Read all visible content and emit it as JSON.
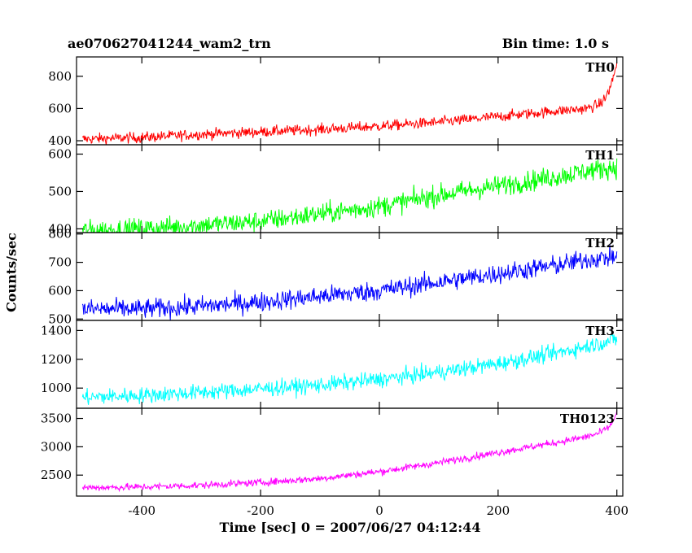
{
  "header": {
    "title": "ae070627041244_wam2_trn",
    "bin_time": "Bin time: 1.0 s"
  },
  "axes": {
    "xlabel": "Time [sec] 0 = 2007/06/27 04:12:44",
    "ylabel": "Counts/sec"
  },
  "colors": {
    "TH0": "#ff0000",
    "TH1": "#00ff00",
    "TH2": "#0000ff",
    "TH3": "#00ffff",
    "TH0123": "#ff00ff"
  },
  "chart_data": {
    "type": "line",
    "xlim": [
      -510,
      410
    ],
    "x_ticks": [
      -400,
      -200,
      0,
      200,
      400
    ],
    "x_tick_labels": [
      "-400",
      "-200",
      "0",
      "200",
      "400"
    ],
    "grid": false,
    "panels": [
      {
        "name": "TH0",
        "ylim": [
          375,
          920
        ],
        "y_ticks": [
          400,
          600,
          800
        ],
        "y_tick_labels": [
          "400",
          "600",
          "800"
        ],
        "trend_x": [
          -500,
          -400,
          -300,
          -200,
          -100,
          0,
          100,
          200,
          300,
          350,
          370,
          380,
          390,
          400
        ],
        "trend_y": [
          410,
          420,
          440,
          455,
          470,
          490,
          515,
          550,
          585,
          600,
          625,
          660,
          740,
          880
        ],
        "noise": 24
      },
      {
        "name": "TH1",
        "ylim": [
          390,
          625
        ],
        "y_ticks": [
          400,
          500,
          600
        ],
        "y_tick_labels": [
          "400",
          "500",
          "600"
        ],
        "trend_x": [
          -500,
          -400,
          -300,
          -200,
          -100,
          0,
          100,
          200,
          300,
          350,
          400
        ],
        "trend_y": [
          395,
          400,
          410,
          420,
          440,
          460,
          490,
          515,
          540,
          555,
          565
        ],
        "noise": 20
      },
      {
        "name": "TH2",
        "ylim": [
          495,
          805
        ],
        "y_ticks": [
          500,
          600,
          700,
          800
        ],
        "y_tick_labels": [
          "500",
          "600",
          "700",
          "800"
        ],
        "trend_x": [
          -500,
          -400,
          -300,
          -200,
          -100,
          0,
          100,
          200,
          300,
          350,
          400
        ],
        "trend_y": [
          535,
          535,
          545,
          560,
          580,
          600,
          630,
          660,
          690,
          710,
          720
        ],
        "noise": 25
      },
      {
        "name": "TH3",
        "ylim": [
          860,
          1470
        ],
        "y_ticks": [
          1000,
          1200,
          1400
        ],
        "y_tick_labels": [
          "1000",
          "1200",
          "1400"
        ],
        "trend_x": [
          -500,
          -400,
          -300,
          -200,
          -100,
          0,
          100,
          200,
          300,
          350,
          400
        ],
        "trend_y": [
          935,
          950,
          970,
          995,
          1020,
          1060,
          1110,
          1170,
          1245,
          1290,
          1340
        ],
        "noise": 40
      },
      {
        "name": "TH0123",
        "ylim": [
          2130,
          3680
        ],
        "y_ticks": [
          2500,
          3000,
          3500
        ],
        "y_tick_labels": [
          "2500",
          "3000",
          "3500"
        ],
        "trend_x": [
          -500,
          -400,
          -300,
          -200,
          -100,
          0,
          100,
          200,
          300,
          350,
          370,
          380,
          390,
          400
        ],
        "trend_y": [
          2280,
          2290,
          2320,
          2370,
          2440,
          2560,
          2720,
          2900,
          3080,
          3180,
          3240,
          3300,
          3380,
          3600
        ],
        "noise": 45
      }
    ]
  }
}
